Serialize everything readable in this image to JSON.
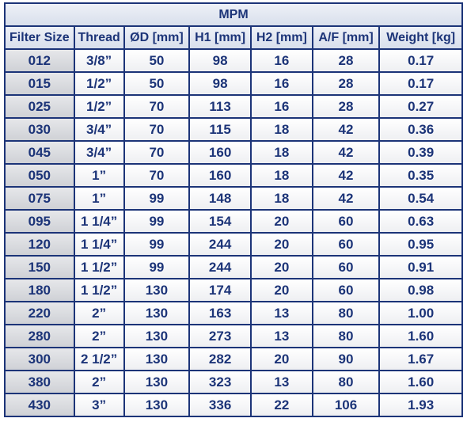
{
  "table": {
    "title": "MPM",
    "header": [
      "Filter Size",
      "Thread",
      "ØD [mm]",
      "H1 [mm]",
      "H2 [mm]",
      "A/F [mm]",
      "Weight [kg]"
    ],
    "rows": [
      [
        "012",
        "3/8”",
        "50",
        "98",
        "16",
        "28",
        "0.17"
      ],
      [
        "015",
        "1/2”",
        "50",
        "98",
        "16",
        "28",
        "0.17"
      ],
      [
        "025",
        "1/2”",
        "70",
        "113",
        "16",
        "28",
        "0.27"
      ],
      [
        "030",
        "3/4”",
        "70",
        "115",
        "18",
        "42",
        "0.36"
      ],
      [
        "045",
        "3/4”",
        "70",
        "160",
        "18",
        "42",
        "0.39"
      ],
      [
        "050",
        "1”",
        "70",
        "160",
        "18",
        "42",
        "0.35"
      ],
      [
        "075",
        "1”",
        "99",
        "148",
        "18",
        "42",
        "0.54"
      ],
      [
        "095",
        "1 1/4”",
        "99",
        "154",
        "20",
        "60",
        "0.63"
      ],
      [
        "120",
        "1 1/4”",
        "99",
        "244",
        "20",
        "60",
        "0.95"
      ],
      [
        "150",
        "1 1/2”",
        "99",
        "244",
        "20",
        "60",
        "0.91"
      ],
      [
        "180",
        "1 1/2”",
        "130",
        "174",
        "20",
        "60",
        "0.98"
      ],
      [
        "220",
        "2”",
        "130",
        "163",
        "13",
        "80",
        "1.00"
      ],
      [
        "280",
        "2”",
        "130",
        "273",
        "13",
        "80",
        "1.60"
      ],
      [
        "300",
        "2 1/2”",
        "130",
        "282",
        "20",
        "90",
        "1.67"
      ],
      [
        "380",
        "2”",
        "130",
        "323",
        "13",
        "80",
        "1.60"
      ],
      [
        "430",
        "3”",
        "130",
        "336",
        "22",
        "106",
        "1.93"
      ]
    ]
  }
}
